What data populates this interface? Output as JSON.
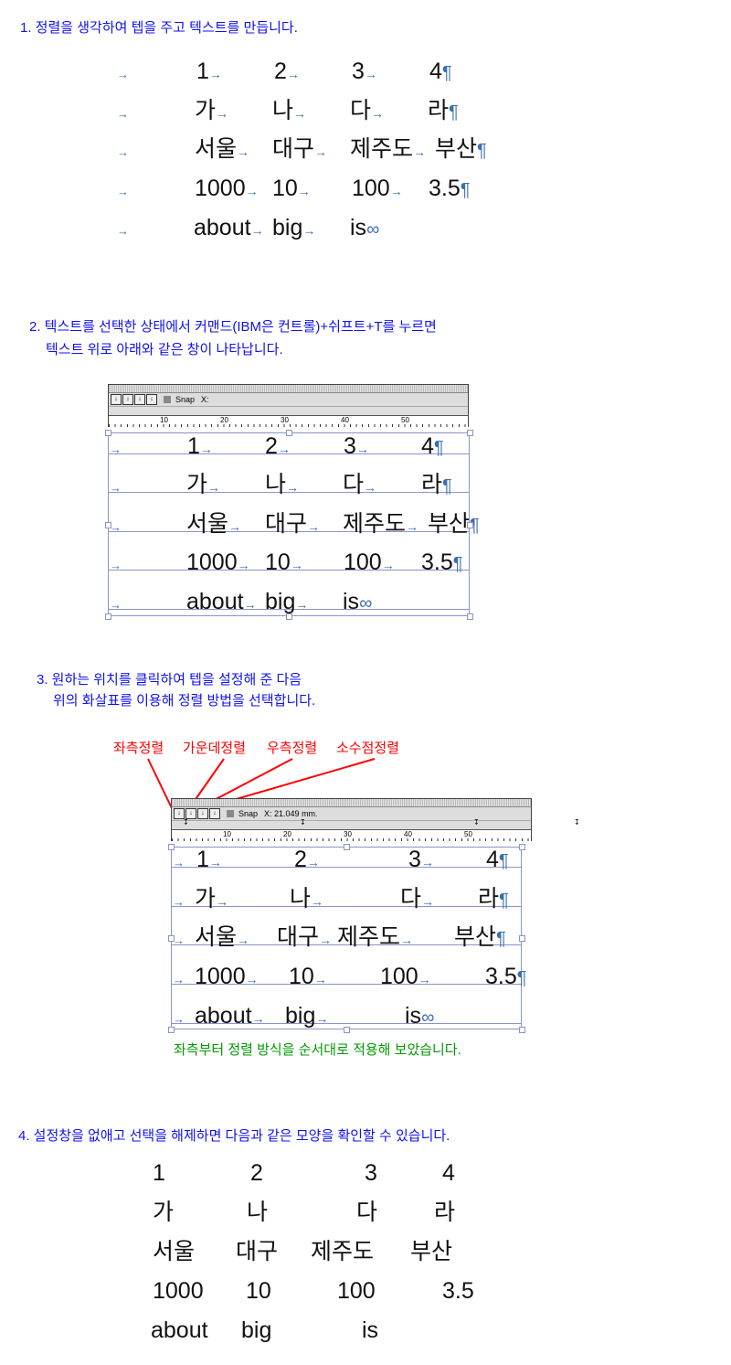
{
  "steps": [
    {
      "text": "1. 정렬을 생각하여 텝을 주고 텍스트를 만듭니다."
    },
    {
      "line1": "2. 텍스트를 선택한 상태에서 커맨드(IBM은 컨트롤)+쉬프트+T를 누르면",
      "line2": "텍스트 위로 아래와 같은 창이 나타납니다."
    },
    {
      "line1": "3. 원하는 위치를 클릭하여 텝을 설정해 준 다음",
      "line2": "위의 화살표를 이용해 정렬 방법을 선택합니다."
    },
    {
      "text": "4. 설정창을 없애고 선택을 해제하면 다음과 같은 모양을 확인할 수 있습니다."
    }
  ],
  "table": [
    [
      "1",
      "2",
      "3",
      "4"
    ],
    [
      "가",
      "나",
      "다",
      "라"
    ],
    [
      "서울",
      "대구",
      "제주도",
      "부산"
    ],
    [
      "1000",
      "10",
      "100",
      "3.5"
    ],
    [
      "about",
      "big",
      "is"
    ]
  ],
  "marks": {
    "tab": "→",
    "para": "¶",
    "end": "∞"
  },
  "palette1": {
    "snap": "Snap",
    "x_label": "X:",
    "ruler": [
      "10",
      "20",
      "30",
      "40",
      "50"
    ]
  },
  "palette2": {
    "snap": "Snap",
    "x_label": "X: 21.049 mm.",
    "ruler": [
      "10",
      "20",
      "30",
      "40",
      "50"
    ]
  },
  "align_labels": [
    "좌측정렬",
    "가운데정렬",
    "우측정렬",
    "소수점정렬"
  ],
  "caption": "좌측부터 정렬 방식을 순서대로 적용해 보았습니다.",
  "colors": {
    "heading": "#1010f0",
    "labels": "#ff0000",
    "caption": "#009900",
    "marks": "#3a6fb0"
  }
}
